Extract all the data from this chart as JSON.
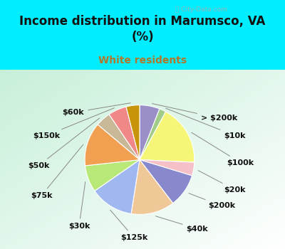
{
  "title": "Income distribution in Marumsco, VA\n(%)",
  "subtitle": "White residents",
  "title_color": "#111111",
  "subtitle_color": "#b07828",
  "background_top": "#00eeff",
  "labels": [
    "> $200k",
    "$10k",
    "$100k",
    "$20k",
    "$200k",
    "$40k",
    "$125k",
    "$30k",
    "$75k",
    "$50k",
    "$150k",
    "$60k"
  ],
  "values": [
    6.0,
    2.0,
    18.0,
    4.0,
    10.0,
    13.0,
    13.0,
    8.0,
    13.0,
    4.5,
    5.5,
    4.0
  ],
  "slice_colors": [
    "#9b8fc8",
    "#a0cc88",
    "#f5f578",
    "#f5c0c8",
    "#8888cc",
    "#f0c898",
    "#a0b8f0",
    "#b8e878",
    "#f0a050",
    "#c8b898",
    "#f08888",
    "#c8940a"
  ],
  "watermark": "ⓘ City-Data.com",
  "label_fontsize": 8,
  "title_fontsize": 12,
  "subtitle_fontsize": 10
}
